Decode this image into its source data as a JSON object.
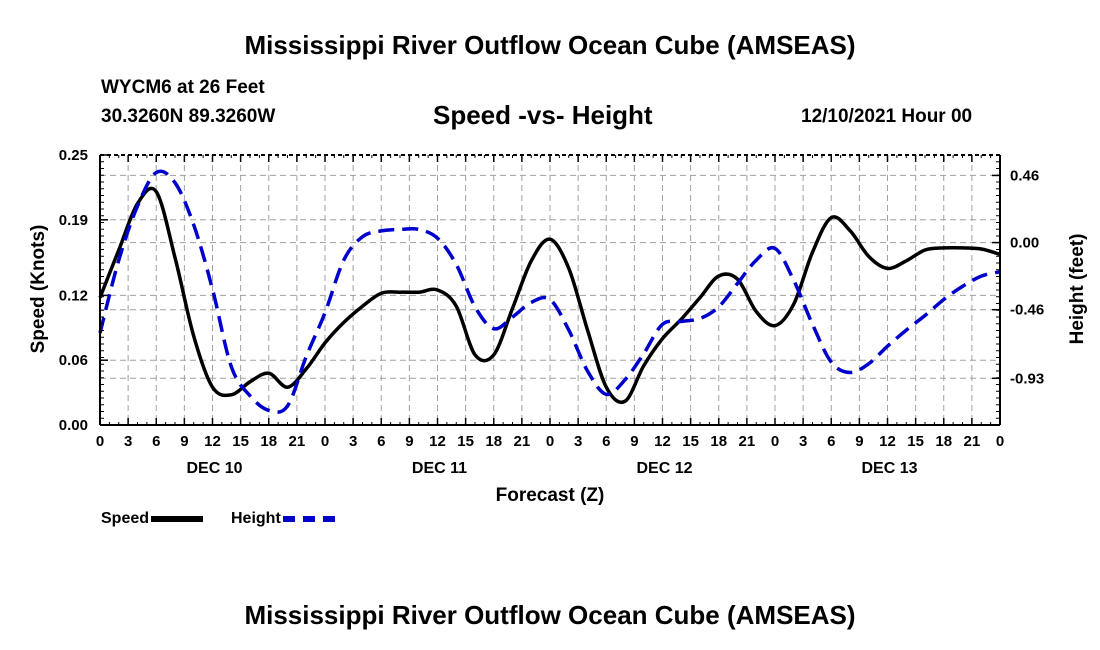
{
  "header": {
    "title": "Mississippi River Outflow Ocean Cube (AMSEAS)",
    "station": "WYCM6 at 26 Feet",
    "coords": "30.3260N  89.3260W",
    "subtitle": "Speed -vs- Height",
    "datetime": "12/10/2021 Hour 00"
  },
  "footer": {
    "title": "Mississippi River Outflow Ocean Cube (AMSEAS)"
  },
  "legend": {
    "speed_label": "Speed",
    "height_label": "Height"
  },
  "colors": {
    "speed": "#000000",
    "height": "#0000cc",
    "grid": "#a0a0a0"
  },
  "chart_data": {
    "type": "line",
    "title": "Speed -vs- Height",
    "xlabel": "Forecast (Z)",
    "ylabel": "Speed (Knots)",
    "ylabel_right": "Height (feet)",
    "xlim": [
      0,
      96
    ],
    "ylim": [
      0,
      0.25
    ],
    "ylim_right": [
      -1.25,
      0.6
    ],
    "x_ticks": [
      0,
      3,
      6,
      9,
      12,
      15,
      18,
      21,
      24,
      27,
      30,
      33,
      36,
      39,
      42,
      45,
      48,
      51,
      54,
      57,
      60,
      63,
      66,
      69,
      72,
      75,
      78,
      81,
      84,
      87,
      90,
      93,
      96
    ],
    "x_tick_labels": [
      "0",
      "3",
      "6",
      "9",
      "12",
      "15",
      "18",
      "21",
      "0",
      "3",
      "6",
      "9",
      "12",
      "15",
      "18",
      "21",
      "0",
      "3",
      "6",
      "9",
      "12",
      "15",
      "18",
      "21",
      "0",
      "3",
      "6",
      "9",
      "12",
      "15",
      "18",
      "21",
      "0"
    ],
    "day_labels": [
      {
        "x": 12,
        "label": "DEC 10"
      },
      {
        "x": 36,
        "label": "DEC 11"
      },
      {
        "x": 60,
        "label": "DEC 12"
      },
      {
        "x": 84,
        "label": "DEC 13"
      }
    ],
    "y_ticks": [
      0.0,
      0.06,
      0.12,
      0.19,
      0.25
    ],
    "y_tick_labels": [
      "0.00",
      "0.06",
      "0.12",
      "0.19",
      "0.25"
    ],
    "y_ticks_right": [
      0.46,
      0.0,
      -0.46,
      -0.93
    ],
    "y_tick_labels_right": [
      "0.46",
      "0.00",
      "-0.46",
      "-0.93"
    ],
    "grid": true,
    "series": [
      {
        "name": "Speed",
        "axis": "left",
        "style": "solid",
        "x": [
          0,
          2,
          4,
          6,
          8,
          10,
          12,
          14,
          16,
          18,
          20,
          22,
          24,
          26,
          28,
          30,
          32,
          34,
          36,
          38,
          40,
          42,
          44,
          46,
          48,
          50,
          52,
          54,
          56,
          58,
          60,
          62,
          64,
          66,
          68,
          70,
          72,
          74,
          76,
          78,
          80,
          82,
          84,
          86,
          88,
          90,
          92,
          94,
          96
        ],
        "values": [
          0.118,
          0.162,
          0.205,
          0.216,
          0.155,
          0.082,
          0.035,
          0.028,
          0.04,
          0.048,
          0.035,
          0.052,
          0.076,
          0.095,
          0.11,
          0.122,
          0.123,
          0.123,
          0.125,
          0.11,
          0.065,
          0.065,
          0.108,
          0.152,
          0.172,
          0.145,
          0.088,
          0.035,
          0.022,
          0.055,
          0.08,
          0.098,
          0.118,
          0.138,
          0.135,
          0.105,
          0.092,
          0.112,
          0.16,
          0.192,
          0.18,
          0.156,
          0.145,
          0.152,
          0.162,
          0.164,
          0.164,
          0.163,
          0.158
        ]
      },
      {
        "name": "Height",
        "axis": "right",
        "style": "dashed",
        "x": [
          0,
          2,
          4,
          6,
          8,
          10,
          12,
          14,
          16,
          18,
          20,
          22,
          24,
          26,
          28,
          30,
          32,
          34,
          36,
          38,
          40,
          42,
          44,
          46,
          48,
          50,
          52,
          54,
          56,
          58,
          60,
          62,
          64,
          66,
          68,
          70,
          72,
          74,
          76,
          78,
          80,
          82,
          84,
          86,
          88,
          90,
          92,
          94,
          96
        ],
        "values": [
          -0.62,
          -0.12,
          0.25,
          0.48,
          0.41,
          0.12,
          -0.32,
          -0.85,
          -1.05,
          -1.15,
          -1.12,
          -0.78,
          -0.48,
          -0.12,
          0.04,
          0.08,
          0.09,
          0.09,
          0.03,
          -0.15,
          -0.44,
          -0.59,
          -0.51,
          -0.41,
          -0.39,
          -0.6,
          -0.88,
          -1.04,
          -0.94,
          -0.76,
          -0.56,
          -0.54,
          -0.52,
          -0.44,
          -0.28,
          -0.12,
          -0.04,
          -0.26,
          -0.56,
          -0.82,
          -0.89,
          -0.83,
          -0.71,
          -0.6,
          -0.5,
          -0.39,
          -0.3,
          -0.23,
          -0.2
        ]
      }
    ]
  }
}
